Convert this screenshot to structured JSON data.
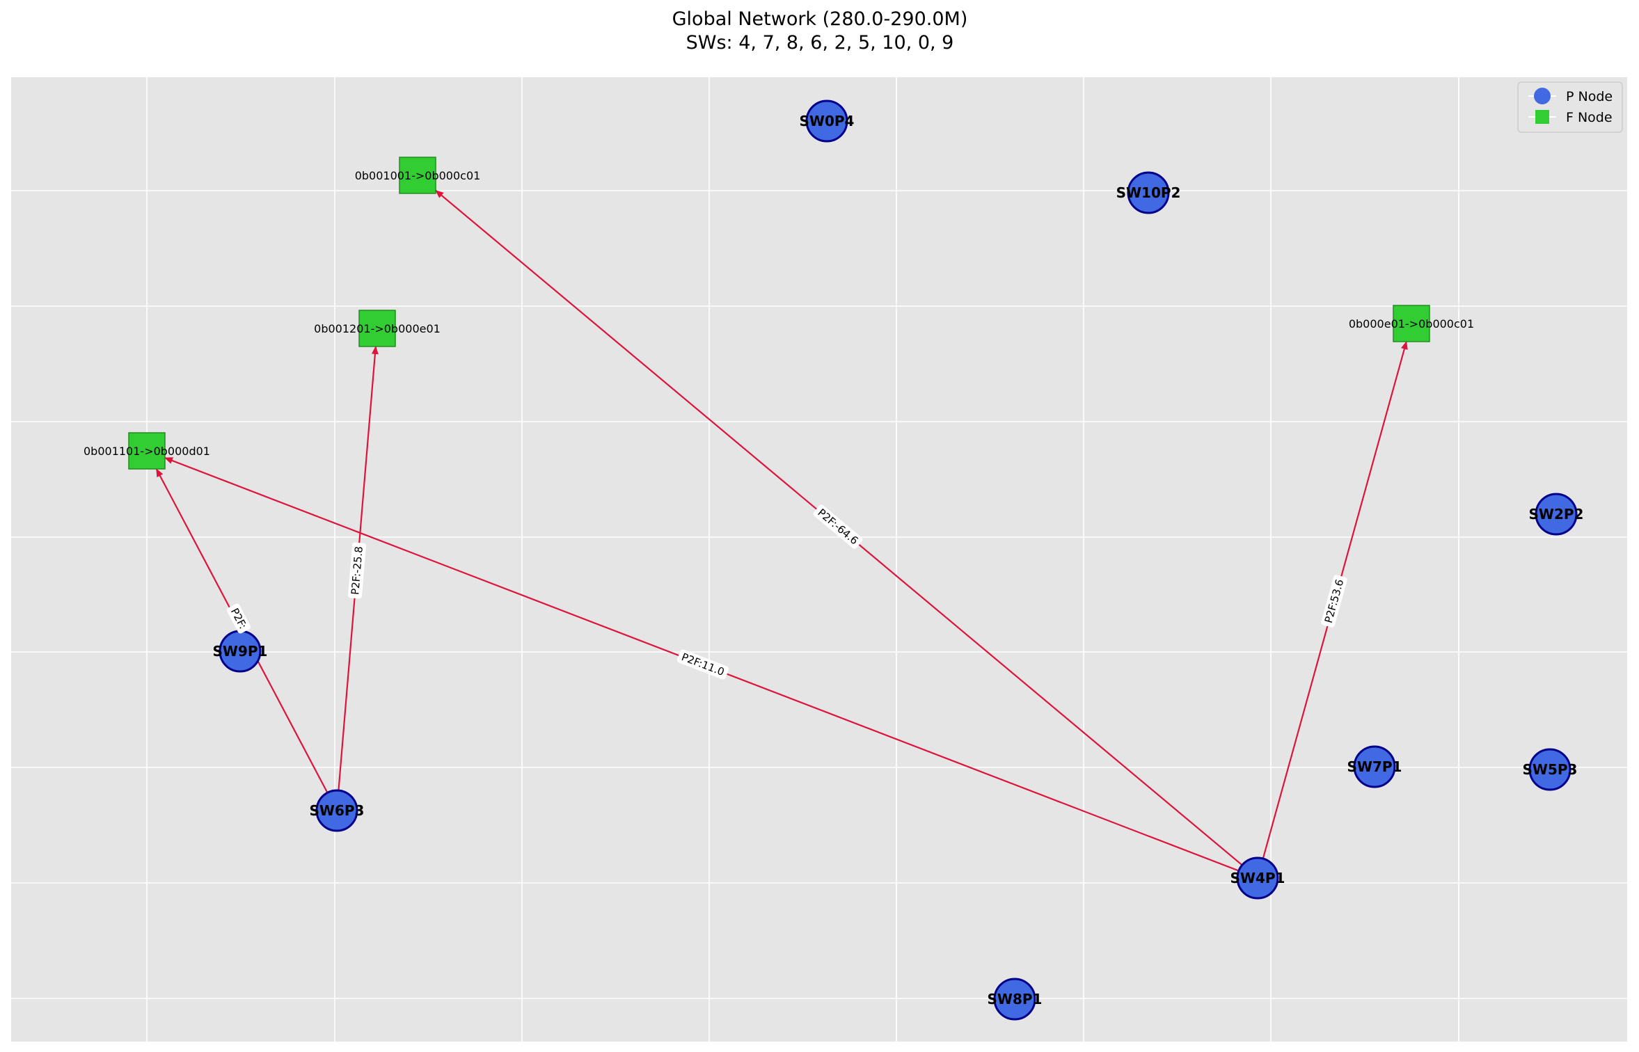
{
  "title": {
    "line1": "Global Network (280.0-290.0M)",
    "line2": "SWs: 4, 7, 8, 6, 2, 5, 10, 0, 9"
  },
  "legend": {
    "placement": "top-right",
    "p_label": "P Node",
    "f_label": "F Node"
  },
  "colors": {
    "background": "#e5e5e5",
    "grid": "#ffffff",
    "p_node_fill": "#4169e1",
    "p_node_edge": "#00008b",
    "f_node_fill": "#32cd32",
    "edge": "#dc143c"
  },
  "chart_data": {
    "type": "network",
    "grid": true,
    "p_nodes": [
      {
        "id": "SW0P4"
      },
      {
        "id": "SW10P2"
      },
      {
        "id": "SW2P2"
      },
      {
        "id": "SW9P1"
      },
      {
        "id": "SW6P3"
      },
      {
        "id": "SW7P1"
      },
      {
        "id": "SW5P3"
      },
      {
        "id": "SW4P1"
      },
      {
        "id": "SW8P1"
      }
    ],
    "f_nodes": [
      {
        "id": "0b001001->0b000c01"
      },
      {
        "id": "0b001201->0b000e01"
      },
      {
        "id": "0b000e01->0b000c01"
      },
      {
        "id": "0b001101->0b000d01"
      }
    ],
    "edges": [
      {
        "from": "SW4P1",
        "to": "0b001001->0b000c01",
        "label": "P2F:-64.6"
      },
      {
        "from": "SW4P1",
        "to": "0b000e01->0b000c01",
        "label": "P2F:53.6"
      },
      {
        "from": "SW4P1",
        "to": "0b001101->0b000d01",
        "label": "P2F:11.0"
      },
      {
        "from": "SW6P3",
        "to": "0b001201->0b000e01",
        "label": "P2F:-25.8"
      },
      {
        "from": "SW6P3",
        "to": "0b001101->0b000d01",
        "label": "P2F:"
      }
    ]
  }
}
